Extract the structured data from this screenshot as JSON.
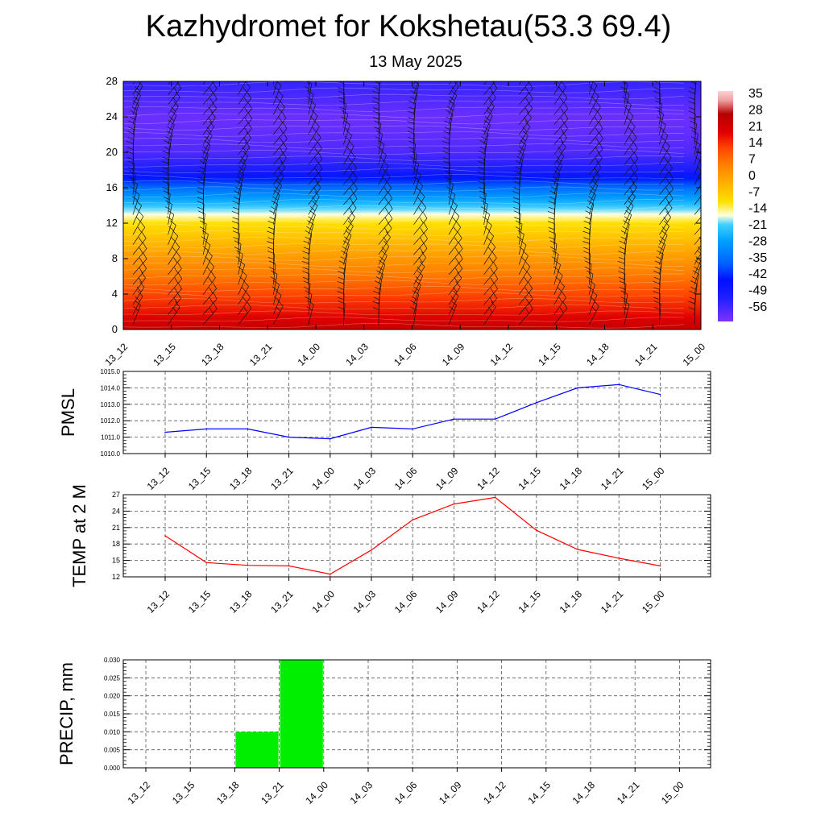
{
  "header": {
    "title": "Kazhydromet for Kokshetau(53.3 69.4)",
    "subtitle": "13 May 2025"
  },
  "chart_data": [
    {
      "type": "heatmap",
      "title": "",
      "ylabel": "",
      "xlabel": "",
      "categories": [
        "13_12",
        "13_15",
        "13_18",
        "13_21",
        "14_00",
        "14_03",
        "14_06",
        "14_09",
        "14_12",
        "14_15",
        "14_18",
        "14_21",
        "15_00"
      ],
      "y_ticks": [
        "0",
        "4",
        "8",
        "12",
        "16",
        "20",
        "24",
        "28"
      ],
      "ylim": [
        0,
        28
      ],
      "colorbar": {
        "labels": [
          "35",
          "28",
          "21",
          "14",
          "7",
          "0",
          "-7",
          "-14",
          "-21",
          "-28",
          "-35",
          "-42",
          "-49",
          "-56"
        ],
        "range": [
          -60,
          40
        ]
      },
      "profile": {
        "levels": [
          0,
          2,
          4,
          6,
          8,
          10,
          12,
          13,
          14,
          16,
          18,
          20,
          22,
          24,
          26,
          28
        ],
        "values": [
          27,
          20,
          15,
          9,
          4,
          -2,
          -8,
          -14,
          -20,
          -33,
          -49,
          -55,
          -57,
          -58,
          -55,
          -52
        ]
      },
      "overlay": "wind barbs"
    },
    {
      "type": "line",
      "ylabel": "PMSL",
      "categories": [
        "13_12",
        "13_15",
        "13_18",
        "13_21",
        "14_00",
        "14_03",
        "14_06",
        "14_09",
        "14_12",
        "14_15",
        "14_18",
        "14_21",
        "15_00"
      ],
      "ylim": [
        1010.0,
        1015.0
      ],
      "y_ticks": [
        "1010.0",
        "1011.0",
        "1012.0",
        "1013.0",
        "1014.0",
        "1015.0"
      ],
      "series": [
        {
          "values": [
            1011.3,
            1011.5,
            1011.5,
            1011.0,
            1010.9,
            1011.6,
            1011.5,
            1012.1,
            1012.1,
            1013.1,
            1014.0,
            1014.2,
            1013.6
          ]
        }
      ],
      "color": "#0000ff",
      "grid": true
    },
    {
      "type": "line",
      "ylabel": "TEMP at 2 M",
      "categories": [
        "13_12",
        "13_15",
        "13_18",
        "13_21",
        "14_00",
        "14_03",
        "14_06",
        "14_09",
        "14_12",
        "14_15",
        "14_18",
        "14_21",
        "15_00"
      ],
      "ylim": [
        12,
        27
      ],
      "y_ticks": [
        "12",
        "15",
        "18",
        "21",
        "24",
        "27"
      ],
      "series": [
        {
          "values": [
            19.5,
            14.6,
            14.1,
            14.0,
            12.5,
            16.9,
            22.4,
            25.3,
            26.5,
            20.5,
            17.0,
            15.4,
            14.0
          ]
        }
      ],
      "color": "#ff0000",
      "grid": true
    },
    {
      "type": "bar",
      "ylabel": "PRECIP, mm",
      "categories": [
        "13_12",
        "13_15",
        "13_18",
        "13_21",
        "14_00",
        "14_03",
        "14_06",
        "14_09",
        "14_12",
        "14_15",
        "14_18",
        "14_21",
        "15_00"
      ],
      "ylim": [
        0,
        0.03
      ],
      "y_ticks": [
        "0.000",
        "0.005",
        "0.010",
        "0.015",
        "0.020",
        "0.025",
        "0.030"
      ],
      "values": [
        0,
        0,
        0,
        0.01,
        0.03,
        0,
        0,
        0,
        0,
        0,
        0,
        0,
        0
      ],
      "color": "#00ee00",
      "grid": true
    }
  ]
}
